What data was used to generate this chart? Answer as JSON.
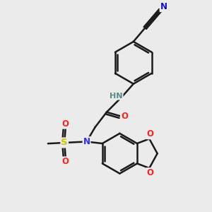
{
  "background_color": "#ebebeb",
  "bond_color": "#1a1a1a",
  "bond_width": 1.8,
  "atom_colors": {
    "N": "#2b2bff",
    "O": "#ff2020",
    "S": "#c8c800",
    "N_nitrile": "#1010cc",
    "H_color": "#5a8a8a"
  },
  "figsize": [
    3.0,
    3.0
  ],
  "dpi": 100,
  "xlim": [
    0,
    10
  ],
  "ylim": [
    0,
    10
  ]
}
